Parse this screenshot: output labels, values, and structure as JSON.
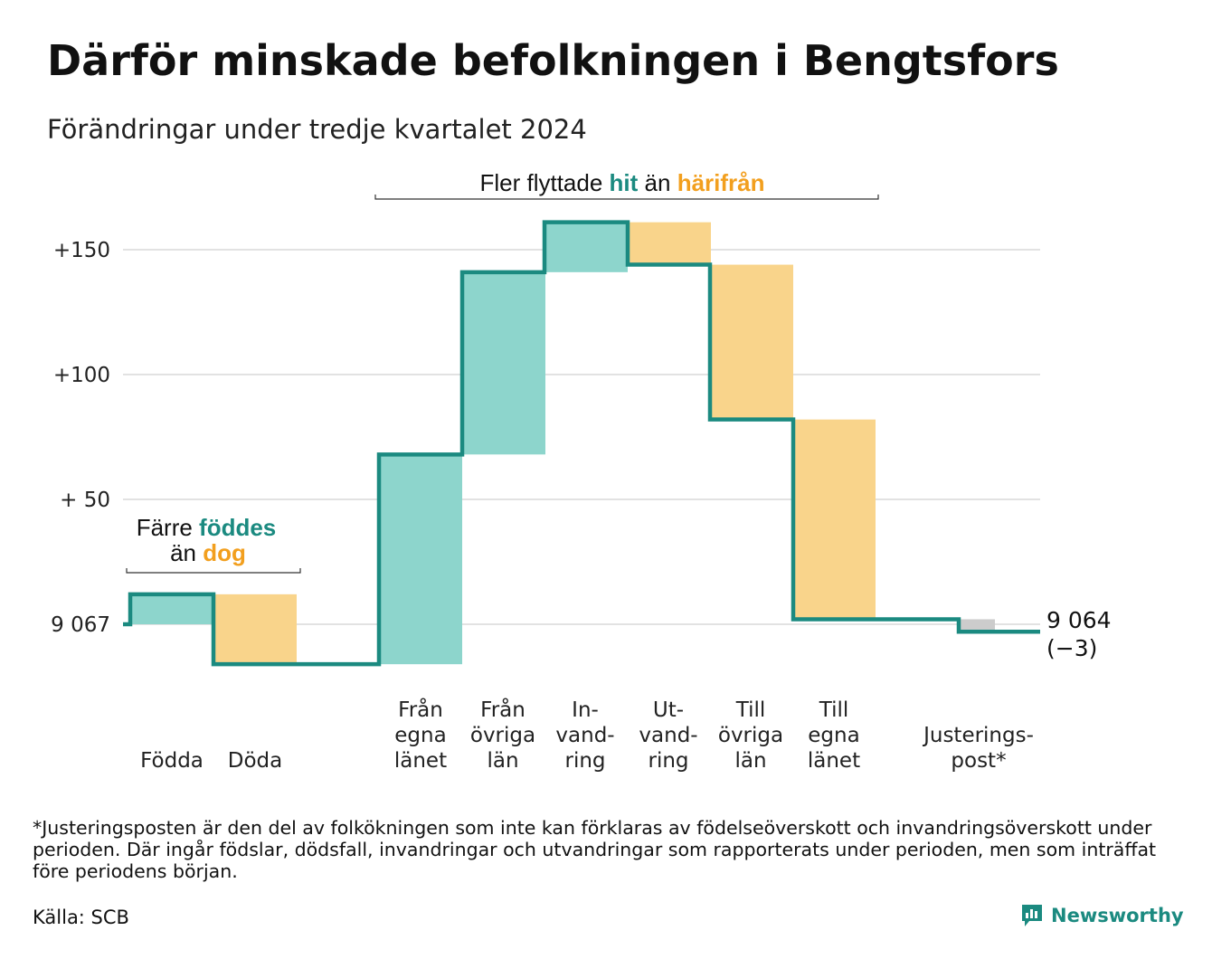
{
  "header": {
    "title": "Därför minskade befolkningen i Bengtsfors",
    "subtitle": "Förändringar under tredje kvartalet 2024"
  },
  "annotations": {
    "births_group": {
      "line1_prefix": "Färre ",
      "line1_highlight": "föddes",
      "line2_prefix": "än ",
      "line2_highlight": "dog"
    },
    "migration_group": {
      "prefix": "Fler flyttade ",
      "highlight_in": "hit",
      "middle": " än ",
      "highlight_out": "härifrån"
    }
  },
  "footer": {
    "footnote": "*Justeringsposten är den del av folkökningen som inte kan förklaras av födelseöverskott och invandringsöverskott under perioden. Där ingår födslar, dödsfall, invandringar och utvandringar som rapporterats under perioden, men som inträffat före periodens början.",
    "source": "Källa: SCB",
    "brand": "Newsworthy"
  },
  "colors": {
    "increase": "#8dd5cc",
    "decrease": "#f9d48b",
    "adjustment": "#cccccc",
    "line": "#1b8a80",
    "highlight_in": "#1b8a80",
    "highlight_out": "#f29f1e",
    "grid": "#e2e2e2"
  },
  "chart_data": {
    "type": "waterfall",
    "title": "Därför minskade befolkningen i Bengtsfors",
    "subtitle": "Förändringar under tredje kvartalet 2024",
    "start_value": 9067,
    "start_label": "9 067",
    "end_value": 9064,
    "end_label": "9 064",
    "end_change_label": "(−3)",
    "y_axis": {
      "ticks": [
        {
          "value": 0,
          "label": "9 067"
        },
        {
          "value": 50,
          "label": "+ 50"
        },
        {
          "value": 100,
          "label": "+100"
        },
        {
          "value": 150,
          "label": "+150"
        }
      ],
      "range": [
        -25,
        165
      ],
      "grid": true
    },
    "steps": [
      {
        "label": [
          "Födda"
        ],
        "delta": 12,
        "kind": "increase"
      },
      {
        "label": [
          "Döda"
        ],
        "delta": -28,
        "kind": "decrease"
      },
      {
        "label": [
          "Från",
          "egna",
          "länet"
        ],
        "delta": 84,
        "kind": "increase"
      },
      {
        "label": [
          "Från",
          "övriga",
          "län"
        ],
        "delta": 73,
        "kind": "increase"
      },
      {
        "label": [
          "In-",
          "vand-",
          "ring"
        ],
        "delta": 20,
        "kind": "increase"
      },
      {
        "label": [
          "Ut-",
          "vand-",
          "ring"
        ],
        "delta": -17,
        "kind": "decrease"
      },
      {
        "label": [
          "Till",
          "övriga",
          "län"
        ],
        "delta": -62,
        "kind": "decrease"
      },
      {
        "label": [
          "Till",
          "egna",
          "länet"
        ],
        "delta": -80,
        "kind": "decrease"
      },
      {
        "label": [
          "Justerings-",
          "post*"
        ],
        "delta": -5,
        "kind": "adjustment"
      }
    ]
  }
}
